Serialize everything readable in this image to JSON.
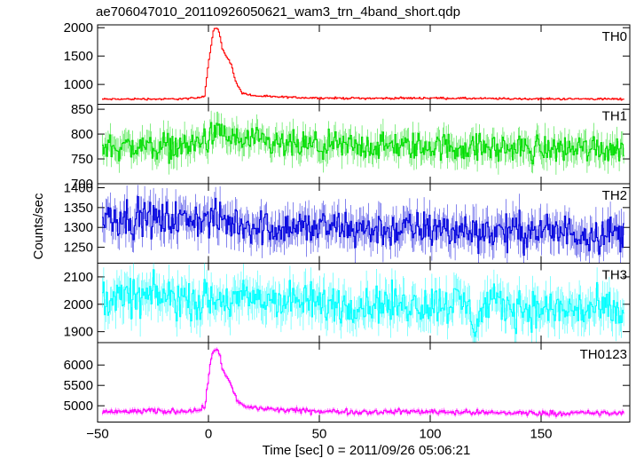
{
  "title": "ae706047010_20110926050621_wam3_trn_4band_short.qdp",
  "chart_data": {
    "type": "line",
    "title": "ae706047010_20110926050621_wam3_trn_4band_short.qdp",
    "xlabel": "Time [sec] 0 = 2011/09/26 05:06:21",
    "ylabel": "Counts/sec",
    "xlim": [
      -50,
      190
    ],
    "x_ticks": [
      -50,
      0,
      50,
      100,
      150
    ],
    "x_tick_labels": [
      "−50",
      "0",
      "50",
      "100",
      "150"
    ],
    "panels": [
      {
        "name": "TH0",
        "color": "#ff0000",
        "ylim": [
          650,
          2050
        ],
        "y_ticks": [
          1000,
          1500,
          2000
        ],
        "y_tick_labels": [
          "1000",
          "1500",
          "2000"
        ],
        "baseline": 740,
        "noise": 12,
        "peak": {
          "t": 3,
          "height": 1260
        },
        "x": [
          -48,
          -40,
          -30,
          -20,
          -10,
          -5,
          -2,
          0,
          1,
          2,
          3,
          4,
          5,
          6,
          7,
          8,
          10,
          12,
          15,
          20,
          30,
          50,
          75,
          100,
          125,
          150,
          175,
          187
        ],
        "values": [
          740,
          740,
          745,
          740,
          750,
          760,
          800,
          1450,
          1700,
          1950,
          2000,
          1980,
          1850,
          1620,
          1550,
          1500,
          1350,
          1050,
          850,
          800,
          780,
          760,
          755,
          760,
          750,
          745,
          745,
          740
        ]
      },
      {
        "name": "TH1",
        "color": "#00dd00",
        "ylim": [
          700,
          860
        ],
        "y_ticks": [
          700,
          750,
          800,
          850
        ],
        "y_tick_labels": [
          "700",
          "750",
          "800",
          "850"
        ],
        "baseline": 775,
        "noise": 20,
        "peak": {
          "t": 5,
          "height": 30
        },
        "x": [
          -48,
          -30,
          -10,
          0,
          5,
          10,
          30,
          50,
          75,
          100,
          125,
          150,
          175,
          187
        ],
        "values": [
          775,
          775,
          775,
          790,
          805,
          790,
          778,
          775,
          775,
          775,
          772,
          770,
          772,
          770
        ]
      },
      {
        "name": "TH2",
        "color": "#0000dd",
        "ylim": [
          1210,
          1410
        ],
        "y_ticks": [
          1250,
          1300,
          1350,
          1400
        ],
        "y_tick_labels": [
          "1250",
          "1300",
          "1350",
          "1400"
        ],
        "baseline": 1300,
        "noise": 32,
        "peak": {
          "t": 0,
          "height": 0
        },
        "x": [
          -48,
          -25,
          0,
          25,
          50,
          75,
          100,
          125,
          150,
          175,
          187
        ],
        "values": [
          1330,
          1320,
          1320,
          1300,
          1300,
          1295,
          1295,
          1290,
          1290,
          1285,
          1285
        ]
      },
      {
        "name": "TH3",
        "color": "#00ffff",
        "ylim": [
          1860,
          2150
        ],
        "y_ticks": [
          1900,
          2000,
          2100
        ],
        "y_tick_labels": [
          "1900",
          "2000",
          "2100"
        ],
        "baseline": 2000,
        "noise": 50,
        "peak": {
          "t": 0,
          "height": 0
        },
        "x": [
          -48,
          -25,
          0,
          25,
          50,
          75,
          100,
          115,
          120,
          125,
          150,
          175,
          187
        ],
        "values": [
          2020,
          2030,
          2010,
          2020,
          2000,
          2000,
          2000,
          2010,
          1930,
          2000,
          1980,
          1980,
          1960
        ]
      },
      {
        "name": "TH0123",
        "color": "#ff00ff",
        "ylim": [
          4600,
          6550
        ],
        "y_ticks": [
          5000,
          5500,
          6000
        ],
        "y_tick_labels": [
          "5000",
          "5500",
          "6000"
        ],
        "baseline": 4850,
        "noise": 45,
        "peak": {
          "t": 3,
          "height": 1450
        },
        "x": [
          -48,
          -40,
          -30,
          -20,
          -10,
          -5,
          -2,
          0,
          1,
          2,
          3,
          4,
          5,
          6,
          7,
          8,
          10,
          12,
          15,
          20,
          30,
          50,
          75,
          100,
          125,
          150,
          175,
          187
        ],
        "values": [
          4850,
          4850,
          4870,
          4860,
          4880,
          4900,
          4950,
          5800,
          6150,
          6350,
          6400,
          6380,
          6250,
          5900,
          5800,
          5700,
          5500,
          5200,
          5000,
          4950,
          4900,
          4860,
          4850,
          4860,
          4830,
          4820,
          4820,
          4810
        ]
      }
    ]
  }
}
